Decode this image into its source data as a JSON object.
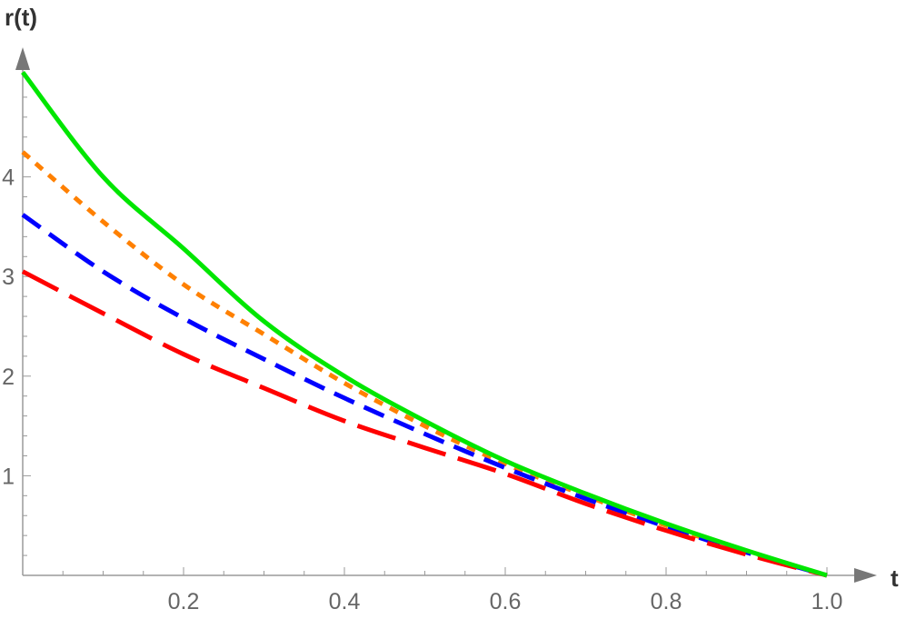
{
  "chart_data": {
    "type": "line",
    "title": "",
    "xlabel": "t",
    "ylabel": "r(t)",
    "xlim": [
      0,
      1.0
    ],
    "ylim": [
      0,
      5.0
    ],
    "x_ticks": [
      "0.2",
      "0.4",
      "0.6",
      "0.8",
      "1.0"
    ],
    "x_tick_values": [
      0.2,
      0.4,
      0.6,
      0.8,
      1.0
    ],
    "y_ticks": [
      "1",
      "2",
      "3",
      "4"
    ],
    "y_tick_values": [
      1,
      2,
      3,
      4
    ],
    "grid": false,
    "x": [
      0,
      0.1,
      0.2,
      0.3,
      0.4,
      0.5,
      0.6,
      0.7,
      0.8,
      0.9,
      1.0
    ],
    "series": [
      {
        "color": "#00e600",
        "dash": "solid",
        "values": [
          5.05,
          4.0,
          3.28,
          2.55,
          2.0,
          1.55,
          1.15,
          0.82,
          0.52,
          0.25,
          0.0
        ]
      },
      {
        "color": "#ff8000",
        "dash": "short",
        "values": [
          4.25,
          3.55,
          2.92,
          2.42,
          1.93,
          1.5,
          1.12,
          0.8,
          0.5,
          0.24,
          0.0
        ]
      },
      {
        "color": "#0000ff",
        "dash": "medium",
        "values": [
          3.62,
          3.05,
          2.58,
          2.17,
          1.78,
          1.42,
          1.08,
          0.77,
          0.49,
          0.23,
          0.0
        ]
      },
      {
        "color": "#ff0000",
        "dash": "long",
        "values": [
          3.05,
          2.63,
          2.22,
          1.88,
          1.55,
          1.28,
          1.02,
          0.72,
          0.45,
          0.21,
          0.0
        ]
      }
    ]
  }
}
